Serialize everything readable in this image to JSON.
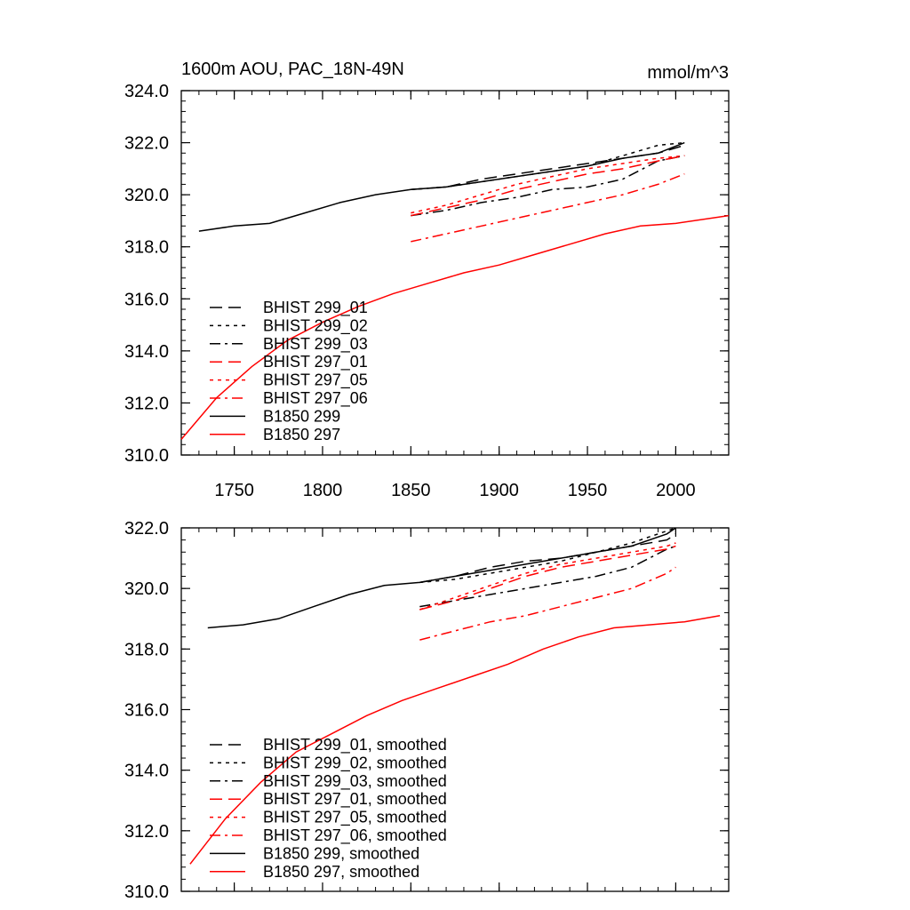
{
  "panel_top": {
    "title_left": "1600m AOU, PAC_18N-49N",
    "title_right": "mmol/m^3"
  },
  "chart_data": [
    {
      "type": "line",
      "title": "1600m AOU, PAC_18N-49N",
      "units": "mmol/m^3",
      "xlim": [
        1720,
        2030
      ],
      "ylim": [
        310,
        324
      ],
      "xticks": [
        1750,
        1800,
        1850,
        1900,
        1950,
        2000
      ],
      "xtick_labels": [
        "1750",
        "1800",
        "1850",
        "1900",
        "1950",
        "2000"
      ],
      "yticks": [
        310,
        312,
        314,
        316,
        318,
        320,
        322,
        324
      ],
      "ytick_labels": [
        "310.0",
        "312.0",
        "314.0",
        "316.0",
        "318.0",
        "320.0",
        "322.0",
        "324.0"
      ],
      "legend_position": "lower-left",
      "series": [
        {
          "name": "BHIST 299_01",
          "color": "#000000",
          "dash": "long-dash",
          "x": [
            1850,
            1870,
            1890,
            1910,
            1930,
            1950,
            1970,
            1990,
            2005
          ],
          "y": [
            320.2,
            320.3,
            320.6,
            320.8,
            321.0,
            321.2,
            321.4,
            321.6,
            321.9
          ]
        },
        {
          "name": "BHIST 299_02",
          "color": "#000000",
          "dash": "dot",
          "x": [
            1850,
            1870,
            1890,
            1910,
            1930,
            1950,
            1970,
            1990,
            2005
          ],
          "y": [
            320.2,
            320.3,
            320.5,
            320.7,
            320.9,
            321.1,
            321.5,
            321.9,
            322.0
          ]
        },
        {
          "name": "BHIST 299_03",
          "color": "#000000",
          "dash": "dash-dot",
          "x": [
            1850,
            1870,
            1890,
            1910,
            1930,
            1950,
            1970,
            1990,
            2005
          ],
          "y": [
            319.2,
            319.4,
            319.7,
            319.9,
            320.2,
            320.3,
            320.6,
            321.3,
            321.5
          ]
        },
        {
          "name": "BHIST 297_01",
          "color": "#ff0000",
          "dash": "long-dash",
          "x": [
            1850,
            1870,
            1890,
            1910,
            1930,
            1950,
            1970,
            1990,
            2005
          ],
          "y": [
            319.2,
            319.5,
            319.8,
            320.2,
            320.5,
            320.8,
            321.0,
            321.3,
            321.5
          ]
        },
        {
          "name": "BHIST 297_05",
          "color": "#ff0000",
          "dash": "dot",
          "x": [
            1850,
            1870,
            1890,
            1910,
            1930,
            1950,
            1970,
            1990,
            2005
          ],
          "y": [
            319.3,
            319.6,
            320.0,
            320.4,
            320.7,
            321.0,
            321.2,
            321.4,
            321.5
          ]
        },
        {
          "name": "BHIST 297_06",
          "color": "#ff0000",
          "dash": "dash-dot",
          "x": [
            1850,
            1870,
            1890,
            1910,
            1930,
            1950,
            1970,
            1990,
            2005
          ],
          "y": [
            318.2,
            318.5,
            318.8,
            319.1,
            319.4,
            319.7,
            320.0,
            320.4,
            320.8
          ]
        },
        {
          "name": "B1850 299",
          "color": "#000000",
          "dash": "solid",
          "x": [
            1730,
            1750,
            1770,
            1790,
            1810,
            1830,
            1850,
            1870,
            1890,
            1910,
            1930,
            1950,
            1970,
            1990,
            2005
          ],
          "y": [
            318.6,
            318.8,
            318.9,
            319.3,
            319.7,
            320.0,
            320.2,
            320.3,
            320.5,
            320.7,
            320.9,
            321.1,
            321.4,
            321.6,
            322.0
          ]
        },
        {
          "name": "B1850 297",
          "color": "#ff0000",
          "dash": "solid",
          "x": [
            1720,
            1740,
            1760,
            1780,
            1800,
            1820,
            1840,
            1860,
            1880,
            1900,
            1920,
            1940,
            1960,
            1980,
            2000,
            2030
          ],
          "y": [
            310.6,
            312.2,
            313.4,
            314.4,
            315.1,
            315.7,
            316.2,
            316.6,
            317.0,
            317.3,
            317.7,
            318.1,
            318.5,
            318.8,
            318.9,
            319.2
          ]
        }
      ]
    },
    {
      "type": "line",
      "title": "",
      "xlim": [
        1720,
        2030
      ],
      "ylim": [
        310,
        322
      ],
      "xticks": [
        1750,
        1800,
        1850,
        1900,
        1950,
        2000
      ],
      "xtick_labels": [],
      "yticks": [
        310,
        312,
        314,
        316,
        318,
        320,
        322
      ],
      "ytick_labels": [
        "310.0",
        "312.0",
        "314.0",
        "316.0",
        "318.0",
        "320.0",
        "322.0"
      ],
      "legend_position": "lower-left",
      "series": [
        {
          "name": "BHIST 299_01, smoothed",
          "color": "#000000",
          "dash": "long-dash",
          "x": [
            1855,
            1875,
            1895,
            1915,
            1935,
            1955,
            1975,
            1995,
            2000
          ],
          "y": [
            320.2,
            320.4,
            320.7,
            320.9,
            321.0,
            321.2,
            321.4,
            321.6,
            321.8
          ]
        },
        {
          "name": "BHIST 299_02, smoothed",
          "color": "#000000",
          "dash": "dot",
          "x": [
            1855,
            1875,
            1895,
            1915,
            1935,
            1955,
            1975,
            1995,
            2000
          ],
          "y": [
            320.2,
            320.3,
            320.5,
            320.7,
            320.9,
            321.2,
            321.5,
            321.9,
            322.0
          ]
        },
        {
          "name": "BHIST 299_03, smoothed",
          "color": "#000000",
          "dash": "dash-dot",
          "x": [
            1855,
            1875,
            1895,
            1915,
            1935,
            1955,
            1975,
            1995,
            2000
          ],
          "y": [
            319.4,
            319.6,
            319.8,
            320.0,
            320.2,
            320.4,
            320.7,
            321.3,
            321.4
          ]
        },
        {
          "name": "BHIST 297_01, smoothed",
          "color": "#ff0000",
          "dash": "long-dash",
          "x": [
            1855,
            1875,
            1895,
            1915,
            1935,
            1955,
            1975,
            1995,
            2000
          ],
          "y": [
            319.3,
            319.6,
            320.0,
            320.4,
            320.7,
            320.9,
            321.1,
            321.3,
            321.4
          ]
        },
        {
          "name": "BHIST 297_05, smoothed",
          "color": "#ff0000",
          "dash": "dot",
          "x": [
            1855,
            1875,
            1895,
            1915,
            1935,
            1955,
            1975,
            1995,
            2000
          ],
          "y": [
            319.3,
            319.7,
            320.1,
            320.5,
            320.8,
            321.0,
            321.2,
            321.4,
            321.5
          ]
        },
        {
          "name": "BHIST 297_06, smoothed",
          "color": "#ff0000",
          "dash": "dash-dot",
          "x": [
            1855,
            1875,
            1895,
            1915,
            1935,
            1955,
            1975,
            1995,
            2000
          ],
          "y": [
            318.3,
            318.6,
            318.9,
            319.1,
            319.4,
            319.7,
            320.0,
            320.5,
            320.7
          ]
        },
        {
          "name": "B1850 299, smoothed",
          "color": "#000000",
          "dash": "solid",
          "x": [
            1735,
            1755,
            1775,
            1795,
            1815,
            1835,
            1855,
            1875,
            1895,
            1915,
            1935,
            1955,
            1975,
            1995,
            2000
          ],
          "y": [
            318.7,
            318.8,
            319.0,
            319.4,
            319.8,
            320.1,
            320.2,
            320.4,
            320.6,
            320.8,
            321.0,
            321.2,
            321.4,
            321.8,
            322.0
          ]
        },
        {
          "name": "B1850 297, smoothed",
          "color": "#ff0000",
          "dash": "solid",
          "x": [
            1725,
            1745,
            1765,
            1785,
            1805,
            1825,
            1845,
            1865,
            1885,
            1905,
            1925,
            1945,
            1965,
            1985,
            2005,
            2025
          ],
          "y": [
            310.9,
            312.4,
            313.6,
            314.6,
            315.2,
            315.8,
            316.3,
            316.7,
            317.1,
            317.5,
            318.0,
            318.4,
            318.7,
            318.8,
            318.9,
            319.1
          ]
        }
      ]
    }
  ]
}
